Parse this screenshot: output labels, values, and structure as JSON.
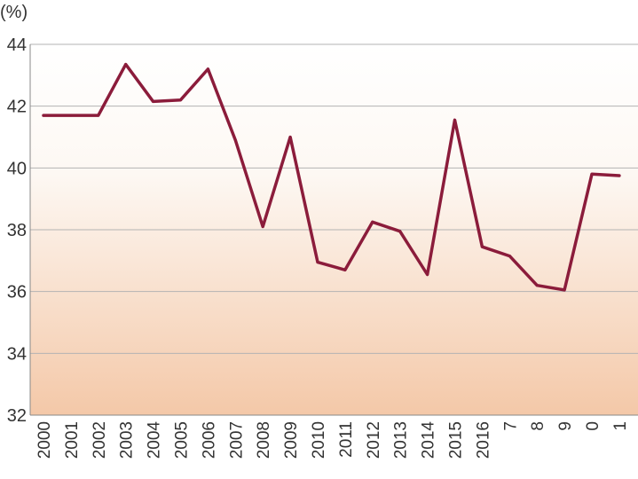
{
  "chart_data": {
    "type": "line",
    "unit_label": "(%)",
    "title": "",
    "xlabel": "",
    "ylabel": "",
    "ylim": [
      32,
      44
    ],
    "yticks": [
      32,
      34,
      36,
      38,
      40,
      42,
      44
    ],
    "grid": true,
    "categories": [
      "2000",
      "2001",
      "2002",
      "2003",
      "2004",
      "2005",
      "2006",
      "2007",
      "2008",
      "2009",
      "2010",
      "2011",
      "2012",
      "2013",
      "2014",
      "2015",
      "2016",
      "7",
      "8",
      "9",
      "0",
      "1"
    ],
    "series": [
      {
        "color": "#8b1c3b",
        "values": [
          41.7,
          41.7,
          41.7,
          43.35,
          42.15,
          42.2,
          43.2,
          40.9,
          38.1,
          41.0,
          36.95,
          36.7,
          38.25,
          37.95,
          36.55,
          41.55,
          37.45,
          37.15,
          36.2,
          36.05,
          39.8,
          39.75
        ]
      }
    ]
  }
}
